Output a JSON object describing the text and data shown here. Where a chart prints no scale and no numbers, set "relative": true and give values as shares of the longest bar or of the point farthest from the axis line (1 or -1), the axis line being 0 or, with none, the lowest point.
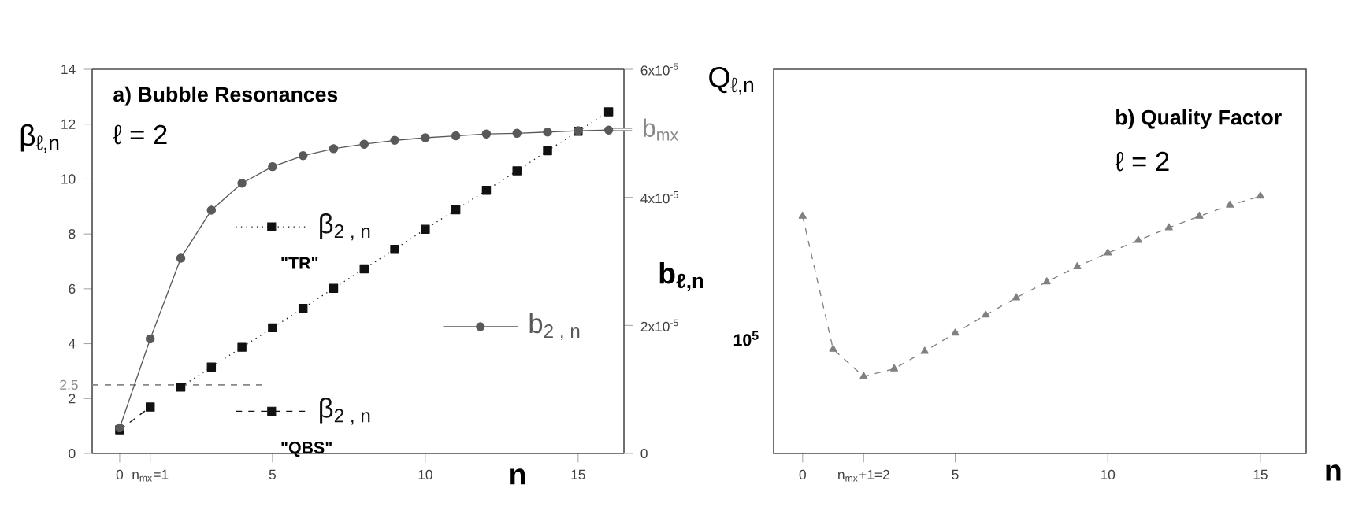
{
  "chart_data": [
    {
      "type": "line",
      "title": "a) Bubble Resonances",
      "annotations": [
        "ℓ = 2",
        "\"TR\"",
        "\"QBS\""
      ],
      "xlabel": "n",
      "ylabel": "β$_{ℓ,n}$",
      "y2label": "b$_{ℓ,n}$",
      "xlim": [
        -0.9,
        16.5
      ],
      "xticks": [
        0,
        {
          "value": 1,
          "label": "n$_{mx}$=1"
        },
        5,
        10,
        15
      ],
      "ylim": [
        0,
        14
      ],
      "yticks": [
        0,
        2,
        4,
        6,
        8,
        10,
        12,
        14
      ],
      "y2lim": [
        0,
        6e-05
      ],
      "y2ticks": [
        0,
        {
          "value": 2e-05,
          "label": "2x10$^{-5}$"
        },
        {
          "value": 4e-05,
          "label": "4x10$^{-5}$"
        },
        {
          "value": 6e-05,
          "label": "6x10$^{-5}$"
        }
      ],
      "ref_lines": [
        {
          "axis": "y",
          "value": 2.5,
          "label": "2.5",
          "color": "#888888",
          "line_style": "dashed"
        },
        {
          "axis": "y2",
          "value": 5.06e-05,
          "label": "b$_{mx}$",
          "color": "#888888",
          "line_style": "solid"
        }
      ],
      "legend": "center",
      "series": [
        {
          "name": "β$_{2 , n}$",
          "color": "#111111",
          "marker": "square",
          "line_style": "dashed",
          "x": [
            0,
            1
          ],
          "values": [
            0.86,
            1.69
          ]
        },
        {
          "name": "β$_{2 , n}$",
          "color": "#111111",
          "marker": "square",
          "line_style": "dotted",
          "x": [
            2,
            3,
            4,
            5,
            6,
            7,
            8,
            9,
            10,
            11,
            12,
            13,
            14,
            15,
            16
          ],
          "values": [
            2.42,
            3.15,
            3.87,
            4.58,
            5.29,
            6.02,
            6.73,
            7.44,
            8.17,
            8.88,
            9.59,
            10.3,
            11.03,
            11.74,
            12.45
          ]
        },
        {
          "name": "b$_{2 , n}$",
          "color": "#595959",
          "marker": "circle",
          "line_style": "solid",
          "axis": "y2",
          "x": [
            0,
            1,
            2,
            3,
            4,
            5,
            6,
            7,
            8,
            9,
            10,
            11,
            12,
            13,
            14,
            15,
            16
          ],
          "values": [
            4e-06,
            1.79e-05,
            3.05e-05,
            3.8e-05,
            4.22e-05,
            4.48e-05,
            4.65e-05,
            4.76e-05,
            4.83e-05,
            4.89e-05,
            4.93e-05,
            4.96e-05,
            4.99e-05,
            5e-05,
            5.02e-05,
            5.04e-05,
            5.05e-05
          ]
        }
      ]
    },
    {
      "type": "line",
      "title": "b) Quality Factor",
      "annotations": [
        "ℓ = 2",
        "10$^{5}$"
      ],
      "xlabel": "n",
      "ylabel": "Q$_{ℓ,n}$",
      "relative": true,
      "marker": "triangle",
      "line_style": "dashed",
      "xlim": [
        -0.95,
        16.5
      ],
      "xticks": [
        0,
        {
          "value": 2,
          "label": "n$_{mx}$+1=2"
        },
        5,
        10,
        15
      ],
      "series": [
        {
          "color": "#808080",
          "x": [
            0,
            1,
            2,
            3,
            4,
            5,
            6,
            7,
            8,
            9,
            10,
            11,
            12,
            13,
            14,
            15
          ],
          "values": [
            0.922,
            0.405,
            0.299,
            0.329,
            0.397,
            0.468,
            0.538,
            0.605,
            0.667,
            0.726,
            0.779,
            0.828,
            0.877,
            0.922,
            0.965,
            1
          ]
        }
      ]
    }
  ]
}
